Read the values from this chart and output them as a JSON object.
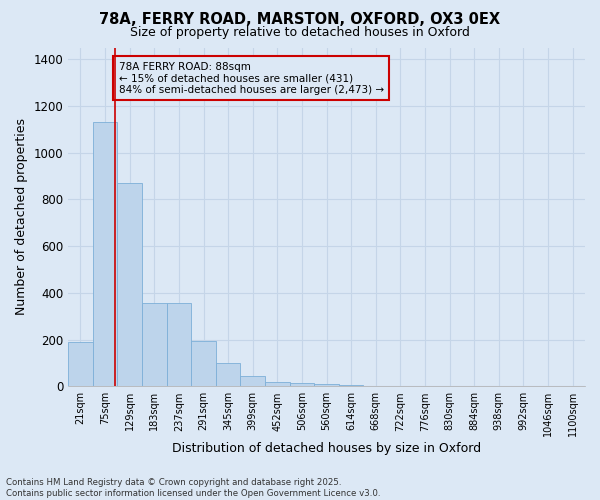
{
  "title_line1": "78A, FERRY ROAD, MARSTON, OXFORD, OX3 0EX",
  "title_line2": "Size of property relative to detached houses in Oxford",
  "xlabel": "Distribution of detached houses by size in Oxford",
  "ylabel": "Number of detached properties",
  "categories": [
    "21sqm",
    "75sqm",
    "129sqm",
    "183sqm",
    "237sqm",
    "291sqm",
    "345sqm",
    "399sqm",
    "452sqm",
    "506sqm",
    "560sqm",
    "614sqm",
    "668sqm",
    "722sqm",
    "776sqm",
    "830sqm",
    "884sqm",
    "938sqm",
    "992sqm",
    "1046sqm",
    "1100sqm"
  ],
  "values": [
    190,
    1130,
    870,
    355,
    355,
    195,
    100,
    45,
    20,
    15,
    10,
    5,
    0,
    0,
    0,
    0,
    0,
    0,
    0,
    0,
    0
  ],
  "bar_color": "#bdd4eb",
  "bar_edge_color": "#7dafd8",
  "grid_color": "#c5d5e8",
  "background_color": "#dce8f5",
  "vline_x_pos": 1.42,
  "vline_color": "#cc0000",
  "annotation_text": "78A FERRY ROAD: 88sqm\n← 15% of detached houses are smaller (431)\n84% of semi-detached houses are larger (2,473) →",
  "annotation_box_color": "#cc0000",
  "ylim": [
    0,
    1450
  ],
  "yticks": [
    0,
    200,
    400,
    600,
    800,
    1000,
    1200,
    1400
  ],
  "footnote": "Contains HM Land Registry data © Crown copyright and database right 2025.\nContains public sector information licensed under the Open Government Licence v3.0.",
  "fig_width": 6.0,
  "fig_height": 5.0,
  "dpi": 100
}
